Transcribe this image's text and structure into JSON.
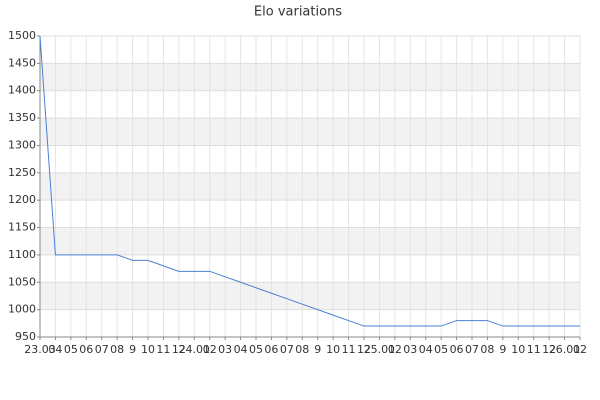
{
  "chart_data": {
    "type": "line",
    "title": "Elo variations",
    "categories": [
      "23.03",
      "04",
      "05",
      "06",
      "07",
      "08",
      "9",
      "10",
      "11",
      "12",
      "24.01",
      "02",
      "03",
      "04",
      "05",
      "06",
      "07",
      "08",
      "9",
      "10",
      "11",
      "12",
      "25.01",
      "02",
      "03",
      "04",
      "05",
      "06",
      "07",
      "08",
      "9",
      "10",
      "11",
      "12",
      "26.01",
      "02"
    ],
    "series": [
      {
        "name": "Elo",
        "color": "#4a80d6",
        "values": [
          1500,
          1100,
          1100,
          1100,
          1100,
          1100,
          1090,
          1090,
          1080,
          1070,
          1070,
          1070,
          1060,
          1050,
          1040,
          1030,
          1020,
          1010,
          1000,
          990,
          980,
          970,
          970,
          970,
          970,
          970,
          970,
          980,
          980,
          980,
          970,
          970,
          970,
          970,
          970,
          970
        ]
      }
    ],
    "ylim": [
      950,
      1500
    ],
    "yticks": [
      950,
      1000,
      1050,
      1100,
      1150,
      1200,
      1250,
      1300,
      1350,
      1400,
      1450,
      1500
    ],
    "grid": true,
    "band_color": "#f2f2f2"
  }
}
